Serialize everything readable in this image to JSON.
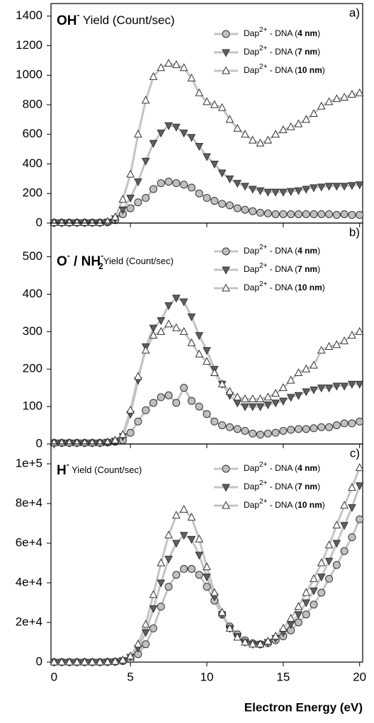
{
  "chart_data": [
    {
      "type": "line",
      "panel_label": "a)",
      "title": [
        {
          "text": "OH",
          "style": "bold"
        },
        {
          "text": "-",
          "style": "sup"
        },
        {
          "text": " Yield (Count/sec)",
          "style": "normal"
        }
      ],
      "x": [
        0,
        0.5,
        1,
        1.5,
        2,
        2.5,
        3,
        3.5,
        4,
        4.5,
        5,
        5.5,
        6,
        6.5,
        7,
        7.5,
        8,
        8.5,
        9,
        9.5,
        10,
        10.5,
        11,
        11.5,
        12,
        12.5,
        13,
        13.5,
        14,
        14.5,
        15,
        15.5,
        16,
        16.5,
        17,
        17.5,
        18,
        18.5,
        19,
        19.5,
        20
      ],
      "xlim": [
        -0.2,
        20.2
      ],
      "xticks": [
        0,
        5,
        10,
        15,
        20
      ],
      "ylim": [
        0,
        1485
      ],
      "yticks": [
        0,
        200,
        400,
        600,
        800,
        1000,
        1200,
        1400
      ],
      "legend": "upper right",
      "line_color": "#c4c4c4",
      "series": [
        {
          "name": "Dap2+ - DNA (4 nm)",
          "color": "#c0c0c0",
          "marker": "circle",
          "values": [
            3,
            3,
            3,
            3,
            3,
            3,
            3,
            5,
            20,
            60,
            100,
            140,
            170,
            230,
            270,
            280,
            270,
            260,
            240,
            200,
            170,
            150,
            130,
            120,
            100,
            90,
            80,
            70,
            65,
            60,
            60,
            60,
            60,
            60,
            60,
            60,
            60,
            55,
            60,
            55,
            55
          ]
        },
        {
          "name": "Dap2+ - DNA (7 nm)",
          "color": "#606060",
          "marker": "triangle-down",
          "values": [
            3,
            3,
            3,
            3,
            3,
            3,
            3,
            8,
            30,
            90,
            170,
            280,
            420,
            540,
            610,
            660,
            650,
            610,
            580,
            520,
            450,
            400,
            340,
            300,
            270,
            250,
            230,
            220,
            210,
            210,
            210,
            215,
            220,
            230,
            240,
            245,
            250,
            250,
            250,
            255,
            260
          ]
        },
        {
          "name": "Dap2+ - DNA (10 nm)",
          "color": "#ffffff",
          "marker": "triangle-up",
          "values": [
            3,
            3,
            3,
            3,
            3,
            3,
            3,
            10,
            40,
            160,
            330,
            600,
            830,
            990,
            1050,
            1080,
            1070,
            1050,
            980,
            880,
            820,
            800,
            780,
            700,
            640,
            600,
            560,
            540,
            560,
            600,
            630,
            650,
            670,
            700,
            740,
            790,
            820,
            840,
            850,
            870,
            880
          ]
        }
      ]
    },
    {
      "type": "line",
      "panel_label": "b)",
      "title": [
        {
          "text": "O",
          "style": "bold"
        },
        {
          "text": "-",
          "style": "sup"
        },
        {
          "text": " / NH",
          "style": "bold"
        },
        {
          "text": "-",
          "style": "sup"
        },
        {
          "text": "2",
          "style": "sub"
        },
        {
          "text": "Yield (Count/sec)",
          "style": "small"
        }
      ],
      "x": [
        0,
        0.5,
        1,
        1.5,
        2,
        2.5,
        3,
        3.5,
        4,
        4.5,
        5,
        5.5,
        6,
        6.5,
        7,
        7.5,
        8,
        8.5,
        9,
        9.5,
        10,
        10.5,
        11,
        11.5,
        12,
        12.5,
        13,
        13.5,
        14,
        14.5,
        15,
        15.5,
        16,
        16.5,
        17,
        17.5,
        18,
        18.5,
        19,
        19.5,
        20
      ],
      "xlim": [
        -0.2,
        20.2
      ],
      "xticks": [
        0,
        5,
        10,
        15,
        20
      ],
      "ylim": [
        0,
        590
      ],
      "yticks": [
        0,
        100,
        200,
        300,
        400,
        500
      ],
      "legend": "upper right",
      "line_color": "#c4c4c4",
      "series": [
        {
          "name": "Dap2+ - DNA (4 nm)",
          "color": "#c0c0c0",
          "marker": "circle",
          "values": [
            3,
            3,
            3,
            3,
            3,
            3,
            3,
            4,
            6,
            10,
            30,
            60,
            90,
            110,
            125,
            130,
            110,
            150,
            115,
            100,
            80,
            60,
            50,
            45,
            40,
            35,
            28,
            25,
            28,
            30,
            35,
            38,
            40,
            40,
            42,
            45,
            45,
            50,
            55,
            55,
            60
          ]
        },
        {
          "name": "Dap2+ - DNA (7 nm)",
          "color": "#606060",
          "marker": "triangle-down",
          "values": [
            3,
            3,
            3,
            3,
            3,
            3,
            3,
            5,
            8,
            20,
            80,
            170,
            260,
            310,
            330,
            370,
            390,
            380,
            340,
            290,
            250,
            200,
            160,
            130,
            110,
            100,
            100,
            100,
            105,
            110,
            115,
            125,
            130,
            140,
            145,
            150,
            150,
            155,
            155,
            160,
            160
          ]
        },
        {
          "name": "Dap2+ - DNA (10 nm)",
          "color": "#ffffff",
          "marker": "triangle-up",
          "values": [
            3,
            3,
            3,
            3,
            3,
            3,
            3,
            5,
            10,
            25,
            90,
            180,
            250,
            290,
            300,
            320,
            310,
            300,
            270,
            240,
            220,
            190,
            160,
            140,
            125,
            120,
            120,
            120,
            125,
            135,
            150,
            170,
            190,
            200,
            210,
            250,
            260,
            265,
            275,
            290,
            300
          ]
        }
      ]
    },
    {
      "type": "line",
      "panel_label": "c)",
      "title": [
        {
          "text": "H",
          "style": "bold"
        },
        {
          "text": "-",
          "style": "sup"
        },
        {
          "text": " Yield (Count/sec)",
          "style": "small"
        }
      ],
      "xlabel": "Electron Energy (eV)",
      "x": [
        0,
        0.5,
        1,
        1.5,
        2,
        2.5,
        3,
        3.5,
        4,
        4.5,
        5,
        5.5,
        6,
        6.5,
        7,
        7.5,
        8,
        8.5,
        9,
        9.5,
        10,
        10.5,
        11,
        11.5,
        12,
        12.5,
        13,
        13.5,
        14,
        14.5,
        15,
        15.5,
        16,
        16.5,
        17,
        17.5,
        18,
        18.5,
        19,
        19.5,
        20
      ],
      "xlim": [
        -0.2,
        20.2
      ],
      "xticks": [
        0,
        5,
        10,
        15,
        20
      ],
      "ylim": [
        0,
        110000
      ],
      "yticks": [
        0,
        {
          "value": 20000,
          "label": "2e+4"
        },
        {
          "value": 40000,
          "label": "4e+4"
        },
        {
          "value": 60000,
          "label": "6e+4"
        },
        {
          "value": 80000,
          "label": "8e+4"
        },
        {
          "value": 100000,
          "label": "1e+5"
        }
      ],
      "legend": "upper right",
      "line_color": "#c4c4c4",
      "series": [
        {
          "name": "Dap2+ - DNA (4 nm)",
          "color": "#c0c0c0",
          "marker": "circle",
          "values": [
            0,
            0,
            0,
            0,
            0,
            0,
            0,
            100,
            200,
            500,
            1500,
            4000,
            9000,
            17000,
            28000,
            38000,
            44000,
            47000,
            47000,
            44000,
            38000,
            31000,
            24000,
            18000,
            14000,
            11000,
            9500,
            9000,
            9500,
            11000,
            13000,
            16000,
            20000,
            24000,
            29000,
            35000,
            42000,
            49000,
            56000,
            63000,
            72000
          ]
        },
        {
          "name": "Dap2+ - DNA (7 nm)",
          "color": "#606060",
          "marker": "triangle-down",
          "values": [
            0,
            0,
            0,
            0,
            0,
            0,
            0,
            100,
            300,
            800,
            2500,
            7000,
            15000,
            27000,
            40000,
            52000,
            60000,
            64000,
            62000,
            54000,
            43000,
            33000,
            24000,
            17000,
            13000,
            10000,
            9000,
            9000,
            10000,
            12000,
            15000,
            19000,
            24000,
            30000,
            36000,
            43000,
            51000,
            60000,
            69000,
            78000,
            89000
          ]
        },
        {
          "name": "Dap2+ - DNA (10 nm)",
          "color": "#ffffff",
          "marker": "triangle-up",
          "values": [
            0,
            0,
            0,
            0,
            0,
            0,
            0,
            100,
            300,
            1000,
            3000,
            9000,
            19000,
            34000,
            50000,
            64000,
            74000,
            77000,
            73000,
            62000,
            48000,
            35000,
            25000,
            17000,
            12500,
            10000,
            9000,
            9000,
            10500,
            13000,
            17000,
            22000,
            28000,
            35000,
            42000,
            50000,
            59000,
            69000,
            79000,
            88000,
            98000
          ]
        }
      ]
    }
  ]
}
